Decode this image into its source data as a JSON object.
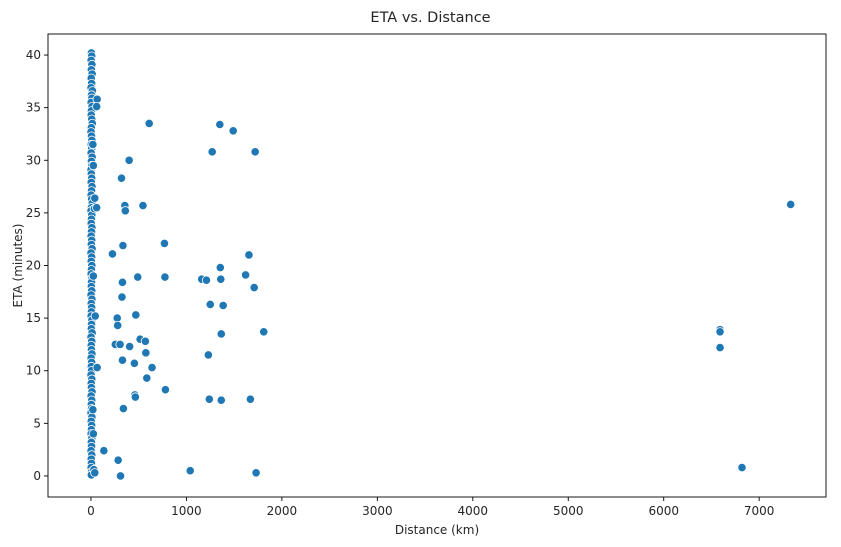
{
  "chart_data": {
    "type": "scatter",
    "title": "ETA vs. Distance",
    "xlabel": "Distance (km)",
    "ylabel": "ETA (minutes)",
    "xlim": [
      -450,
      7700
    ],
    "ylim": [
      -2,
      42
    ],
    "xticks": [
      0,
      1000,
      2000,
      3000,
      4000,
      5000,
      6000,
      7000
    ],
    "yticks": [
      0,
      5,
      10,
      15,
      20,
      25,
      30,
      35,
      40
    ],
    "grid": false,
    "point_color": "#1f77b4",
    "points": [
      [
        5,
        40.2
      ],
      [
        8,
        39.9
      ],
      [
        2,
        39.5
      ],
      [
        10,
        39.1
      ],
      [
        4,
        38.6
      ],
      [
        12,
        38.2
      ],
      [
        3,
        37.8
      ],
      [
        7,
        37.3
      ],
      [
        1,
        36.9
      ],
      [
        15,
        36.6
      ],
      [
        6,
        36.2
      ],
      [
        9,
        35.9
      ],
      [
        2,
        35.5
      ],
      [
        11,
        35.1
      ],
      [
        5,
        34.7
      ],
      [
        3,
        34.3
      ],
      [
        8,
        33.9
      ],
      [
        14,
        33.5
      ],
      [
        4,
        33.1
      ],
      [
        1,
        32.7
      ],
      [
        6,
        32.3
      ],
      [
        10,
        31.9
      ],
      [
        3,
        31.5
      ],
      [
        7,
        31.1
      ],
      [
        2,
        30.7
      ],
      [
        12,
        30.3
      ],
      [
        5,
        29.9
      ],
      [
        9,
        29.5
      ],
      [
        1,
        29.1
      ],
      [
        4,
        28.7
      ],
      [
        8,
        28.3
      ],
      [
        3,
        27.9
      ],
      [
        11,
        27.5
      ],
      [
        6,
        27.1
      ],
      [
        2,
        26.7
      ],
      [
        7,
        26.3
      ],
      [
        13,
        25.9
      ],
      [
        4,
        25.5
      ],
      [
        1,
        25.2
      ],
      [
        9,
        24.8
      ],
      [
        5,
        24.4
      ],
      [
        3,
        24.0
      ],
      [
        10,
        23.6
      ],
      [
        6,
        23.2
      ],
      [
        2,
        22.8
      ],
      [
        8,
        22.4
      ],
      [
        4,
        22.0
      ],
      [
        12,
        21.6
      ],
      [
        1,
        21.2
      ],
      [
        7,
        20.8
      ],
      [
        3,
        20.4
      ],
      [
        9,
        20.0
      ],
      [
        5,
        19.6
      ],
      [
        2,
        19.2
      ],
      [
        11,
        18.8
      ],
      [
        6,
        18.4
      ],
      [
        4,
        18.0
      ],
      [
        8,
        17.6
      ],
      [
        1,
        17.2
      ],
      [
        10,
        16.8
      ],
      [
        3,
        16.4
      ],
      [
        7,
        16.0
      ],
      [
        5,
        15.6
      ],
      [
        2,
        15.2
      ],
      [
        9,
        14.8
      ],
      [
        6,
        14.4
      ],
      [
        4,
        14.0
      ],
      [
        12,
        13.6
      ],
      [
        1,
        13.2
      ],
      [
        8,
        12.8
      ],
      [
        3,
        12.4
      ],
      [
        5,
        12.0
      ],
      [
        10,
        11.6
      ],
      [
        2,
        11.2
      ],
      [
        7,
        10.8
      ],
      [
        4,
        10.4
      ],
      [
        6,
        10.0
      ],
      [
        1,
        9.6
      ],
      [
        9,
        9.2
      ],
      [
        3,
        8.8
      ],
      [
        5,
        8.4
      ],
      [
        11,
        8.0
      ],
      [
        2,
        7.6
      ],
      [
        8,
        7.2
      ],
      [
        4,
        6.8
      ],
      [
        6,
        6.4
      ],
      [
        1,
        6.0
      ],
      [
        10,
        5.6
      ],
      [
        3,
        5.2
      ],
      [
        7,
        4.8
      ],
      [
        5,
        4.4
      ],
      [
        2,
        4.0
      ],
      [
        9,
        3.6
      ],
      [
        4,
        3.2
      ],
      [
        6,
        2.8
      ],
      [
        1,
        2.4
      ],
      [
        8,
        2.0
      ],
      [
        3,
        1.6
      ],
      [
        5,
        1.2
      ],
      [
        2,
        0.8
      ],
      [
        7,
        0.4
      ],
      [
        4,
        0.1
      ],
      [
        65,
        35.8
      ],
      [
        60,
        35.1
      ],
      [
        20,
        31.5
      ],
      [
        25,
        29.5
      ],
      [
        40,
        26.4
      ],
      [
        35,
        25.4
      ],
      [
        60,
        25.5
      ],
      [
        25,
        19.0
      ],
      [
        45,
        15.2
      ],
      [
        65,
        10.3
      ],
      [
        20,
        6.3
      ],
      [
        25,
        4.0
      ],
      [
        30,
        0.6
      ],
      [
        40,
        0.3
      ],
      [
        135,
        2.4
      ],
      [
        225,
        21.1
      ],
      [
        255,
        12.5
      ],
      [
        275,
        15.0
      ],
      [
        280,
        14.3
      ],
      [
        285,
        1.5
      ],
      [
        305,
        12.5
      ],
      [
        310,
        0.0
      ],
      [
        320,
        28.3
      ],
      [
        325,
        17.0
      ],
      [
        330,
        18.4
      ],
      [
        330,
        11.0
      ],
      [
        335,
        21.9
      ],
      [
        340,
        6.4
      ],
      [
        355,
        25.7
      ],
      [
        360,
        25.2
      ],
      [
        400,
        30.0
      ],
      [
        405,
        12.3
      ],
      [
        455,
        10.7
      ],
      [
        460,
        7.7
      ],
      [
        465,
        7.5
      ],
      [
        470,
        15.3
      ],
      [
        490,
        18.9
      ],
      [
        515,
        13.0
      ],
      [
        545,
        25.7
      ],
      [
        570,
        12.8
      ],
      [
        575,
        11.7
      ],
      [
        585,
        9.3
      ],
      [
        610,
        33.5
      ],
      [
        640,
        10.3
      ],
      [
        770,
        22.1
      ],
      [
        775,
        18.9
      ],
      [
        780,
        8.2
      ],
      [
        1040,
        0.5
      ],
      [
        1160,
        18.7
      ],
      [
        1210,
        18.6
      ],
      [
        1230,
        11.5
      ],
      [
        1240,
        7.3
      ],
      [
        1250,
        16.3
      ],
      [
        1270,
        30.8
      ],
      [
        1350,
        33.4
      ],
      [
        1355,
        19.8
      ],
      [
        1360,
        18.7
      ],
      [
        1365,
        13.5
      ],
      [
        1365,
        7.2
      ],
      [
        1385,
        16.2
      ],
      [
        1490,
        32.8
      ],
      [
        1620,
        19.1
      ],
      [
        1655,
        21.0
      ],
      [
        1670,
        7.3
      ],
      [
        1710,
        17.9
      ],
      [
        1720,
        30.8
      ],
      [
        1730,
        0.3
      ],
      [
        1810,
        13.7
      ],
      [
        6590,
        13.9
      ],
      [
        6590,
        13.7
      ],
      [
        6590,
        12.2
      ],
      [
        6820,
        0.8
      ],
      [
        7330,
        25.8
      ]
    ]
  }
}
